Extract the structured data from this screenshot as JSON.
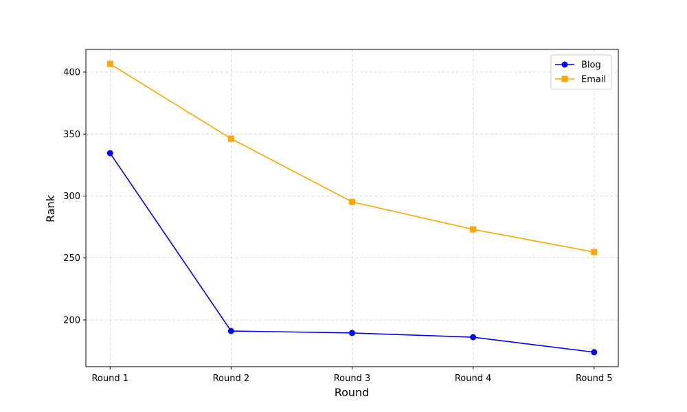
{
  "chart_data": {
    "type": "line",
    "x_label": "Round",
    "y_label": "Rank",
    "categories": [
      "Round 1",
      "Round 2",
      "Round 3",
      "Round 4",
      "Round 5"
    ],
    "series": [
      {
        "name": "Blog",
        "color": "#0000ff",
        "marker": "circle",
        "values": [
          334.6,
          191.1,
          189.5,
          186.1,
          174.0
        ]
      },
      {
        "name": "Email",
        "color": "#ffa500",
        "marker": "square",
        "values": [
          406.6,
          346.3,
          295.3,
          273.1,
          254.8
        ]
      }
    ],
    "ylim": [
      162.3,
      418.3
    ],
    "yticks": [
      200,
      250,
      300,
      350,
      400
    ],
    "grid": true,
    "legend": "upper-right"
  }
}
